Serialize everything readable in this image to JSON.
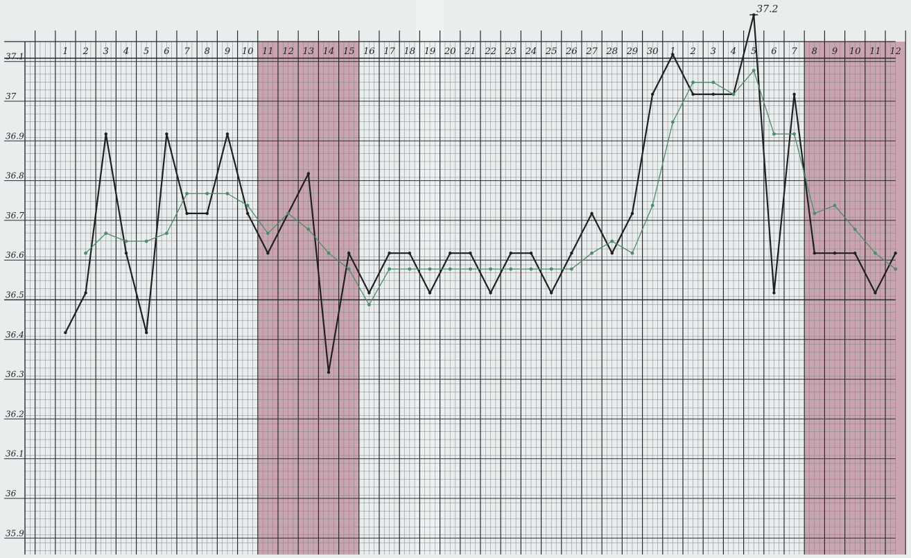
{
  "chart_data": {
    "type": "line",
    "title": "",
    "xlabel": "",
    "ylabel": "",
    "ylim": [
      35.85,
      37.25
    ],
    "x_tick_labels": [
      "1",
      "2",
      "3",
      "4",
      "5",
      "6",
      "7",
      "8",
      "9",
      "10",
      "11",
      "12",
      "13",
      "14",
      "15",
      "16",
      "17",
      "18",
      "19",
      "20",
      "21",
      "22",
      "23",
      "24",
      "25",
      "26",
      "27",
      "28",
      "29",
      "30",
      "1",
      "2",
      "3",
      "4",
      "5",
      "6",
      "7",
      "8",
      "9",
      "10",
      "11",
      "12"
    ],
    "y_tick_labels": [
      "37.1",
      "37",
      "36.9",
      "36.8",
      "36.7",
      "36.6",
      "36.5",
      "36.4",
      "36.3",
      "36.2",
      "36.1",
      "36",
      "35.9"
    ],
    "y_tick_values": [
      37.1,
      37.0,
      36.9,
      36.8,
      36.7,
      36.6,
      36.5,
      36.4,
      36.3,
      36.2,
      36.1,
      36.0,
      35.9
    ],
    "shaded_periods": [
      {
        "from": 11,
        "to": 15
      },
      {
        "from": 38,
        "to": 42
      }
    ],
    "annotation": {
      "text": "37.2",
      "at_index": 35,
      "value": 37.2
    },
    "series": [
      {
        "color": "#1f1f22",
        "values": [
          36.4,
          36.5,
          36.9,
          36.6,
          36.4,
          36.9,
          36.7,
          36.7,
          36.9,
          36.7,
          36.6,
          36.7,
          36.8,
          36.3,
          36.6,
          36.5,
          36.6,
          36.6,
          36.5,
          36.6,
          36.6,
          36.5,
          36.6,
          36.6,
          36.5,
          36.6,
          36.7,
          36.6,
          36.7,
          37.0,
          37.1,
          37.0,
          37.0,
          37.0,
          37.2,
          36.5,
          37.0,
          36.6,
          36.6,
          36.6,
          36.5,
          36.6
        ]
      },
      {
        "color": "#4f8a6c",
        "start_index": 2,
        "values": [
          36.6,
          36.65,
          36.63,
          36.63,
          36.65,
          36.75,
          36.75,
          36.75,
          36.72,
          36.65,
          36.7,
          36.66,
          36.6,
          36.56,
          36.47,
          36.56,
          36.56,
          36.56,
          36.56,
          36.56,
          36.56,
          36.56,
          36.56,
          36.56,
          36.56,
          36.6,
          36.63,
          36.6,
          36.72,
          36.93,
          37.03,
          37.03,
          37.0,
          37.06,
          36.9,
          36.9,
          36.7,
          36.72,
          36.66,
          36.6,
          36.56
        ]
      }
    ],
    "grid": true
  }
}
